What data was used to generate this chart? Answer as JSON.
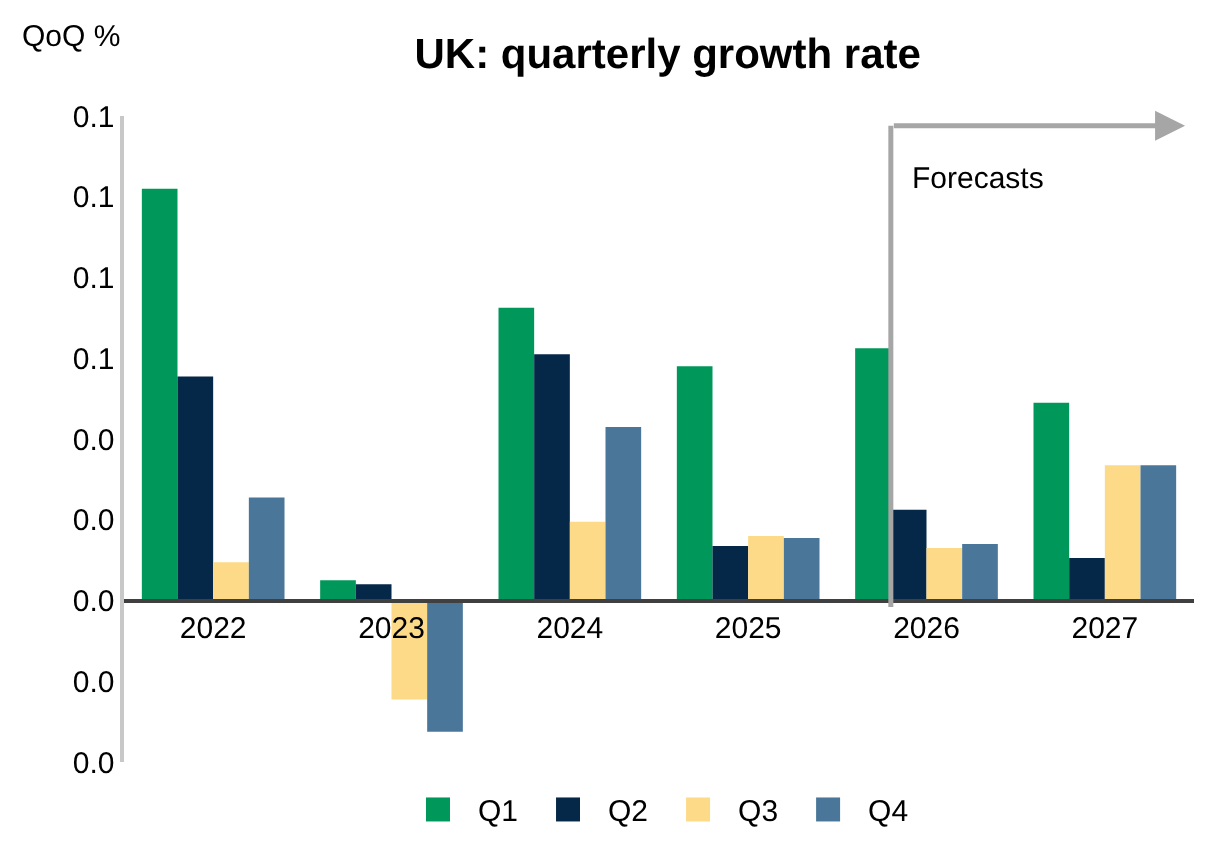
{
  "chart_data": {
    "type": "bar",
    "title": "UK: quarterly growth rate",
    "ylabel": "QoQ %",
    "categories": [
      "2022",
      "2023",
      "2024",
      "2025",
      "2026",
      "2027"
    ],
    "series": [
      {
        "name": "Q1",
        "color": "#00975a",
        "values": [
          0.102,
          0.005,
          0.0725,
          0.058,
          0.0625,
          0.049
        ]
      },
      {
        "name": "Q2",
        "color": "#052848",
        "values": [
          0.0555,
          0.004,
          0.061,
          0.0135,
          0.0225,
          0.0105
        ]
      },
      {
        "name": "Q3",
        "color": "#fdda88",
        "values": [
          0.0095,
          -0.0245,
          0.0195,
          0.016,
          0.013,
          0.0335
        ]
      },
      {
        "name": "Q4",
        "color": "#4a7799",
        "values": [
          0.0255,
          -0.0325,
          0.043,
          0.0155,
          0.014,
          0.0335
        ]
      }
    ],
    "ylim": [
      -0.04,
      0.12
    ],
    "yticks": [
      {
        "value": 0.12,
        "label": "0.1"
      },
      {
        "value": 0.1,
        "label": "0.1"
      },
      {
        "value": 0.08,
        "label": "0.1"
      },
      {
        "value": 0.06,
        "label": "0.1"
      },
      {
        "value": 0.04,
        "label": "0.0"
      },
      {
        "value": 0.02,
        "label": "0.0"
      },
      {
        "value": 0,
        "label": "0.0"
      },
      {
        "value": -0.02,
        "label": "0.0"
      },
      {
        "value": -0.04,
        "label": "0.0"
      }
    ],
    "annotations": [
      "Forecasts"
    ],
    "legend": "bottom"
  }
}
